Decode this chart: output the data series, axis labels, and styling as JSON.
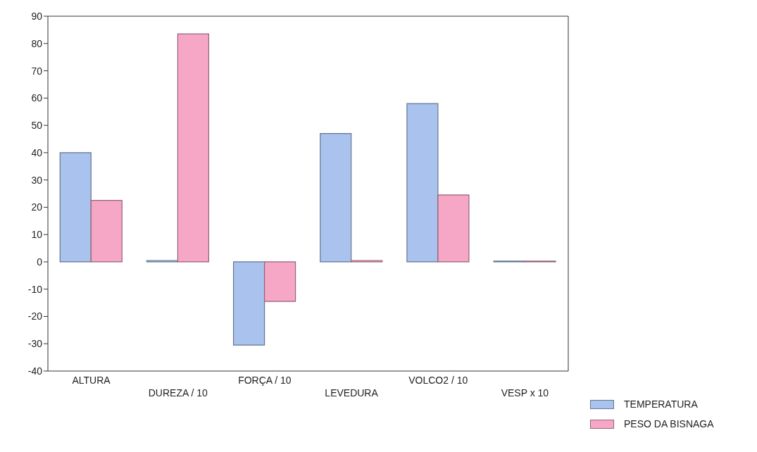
{
  "chart_data": {
    "type": "bar",
    "categories": [
      "ALTURA",
      "DUREZA / 10",
      "FORÇA / 10",
      "LEVEDURA",
      "VOLCO2 / 10",
      "VESP x 10"
    ],
    "series": [
      {
        "name": "TEMPERATURA",
        "color": "#a9c3ee",
        "values": [
          40,
          0.5,
          -30.5,
          47,
          58,
          0.3
        ]
      },
      {
        "name": "PESO DA BISNAGA",
        "color": "#f6a7c6",
        "values": [
          22.5,
          83.5,
          -14.5,
          0.5,
          24.5,
          0.3
        ]
      }
    ],
    "ylim": [
      -40,
      90
    ],
    "yticks": [
      -40,
      -30,
      -20,
      -10,
      0,
      10,
      20,
      30,
      40,
      50,
      60,
      70,
      80,
      90
    ],
    "grid": false,
    "legend": "bottom right"
  }
}
